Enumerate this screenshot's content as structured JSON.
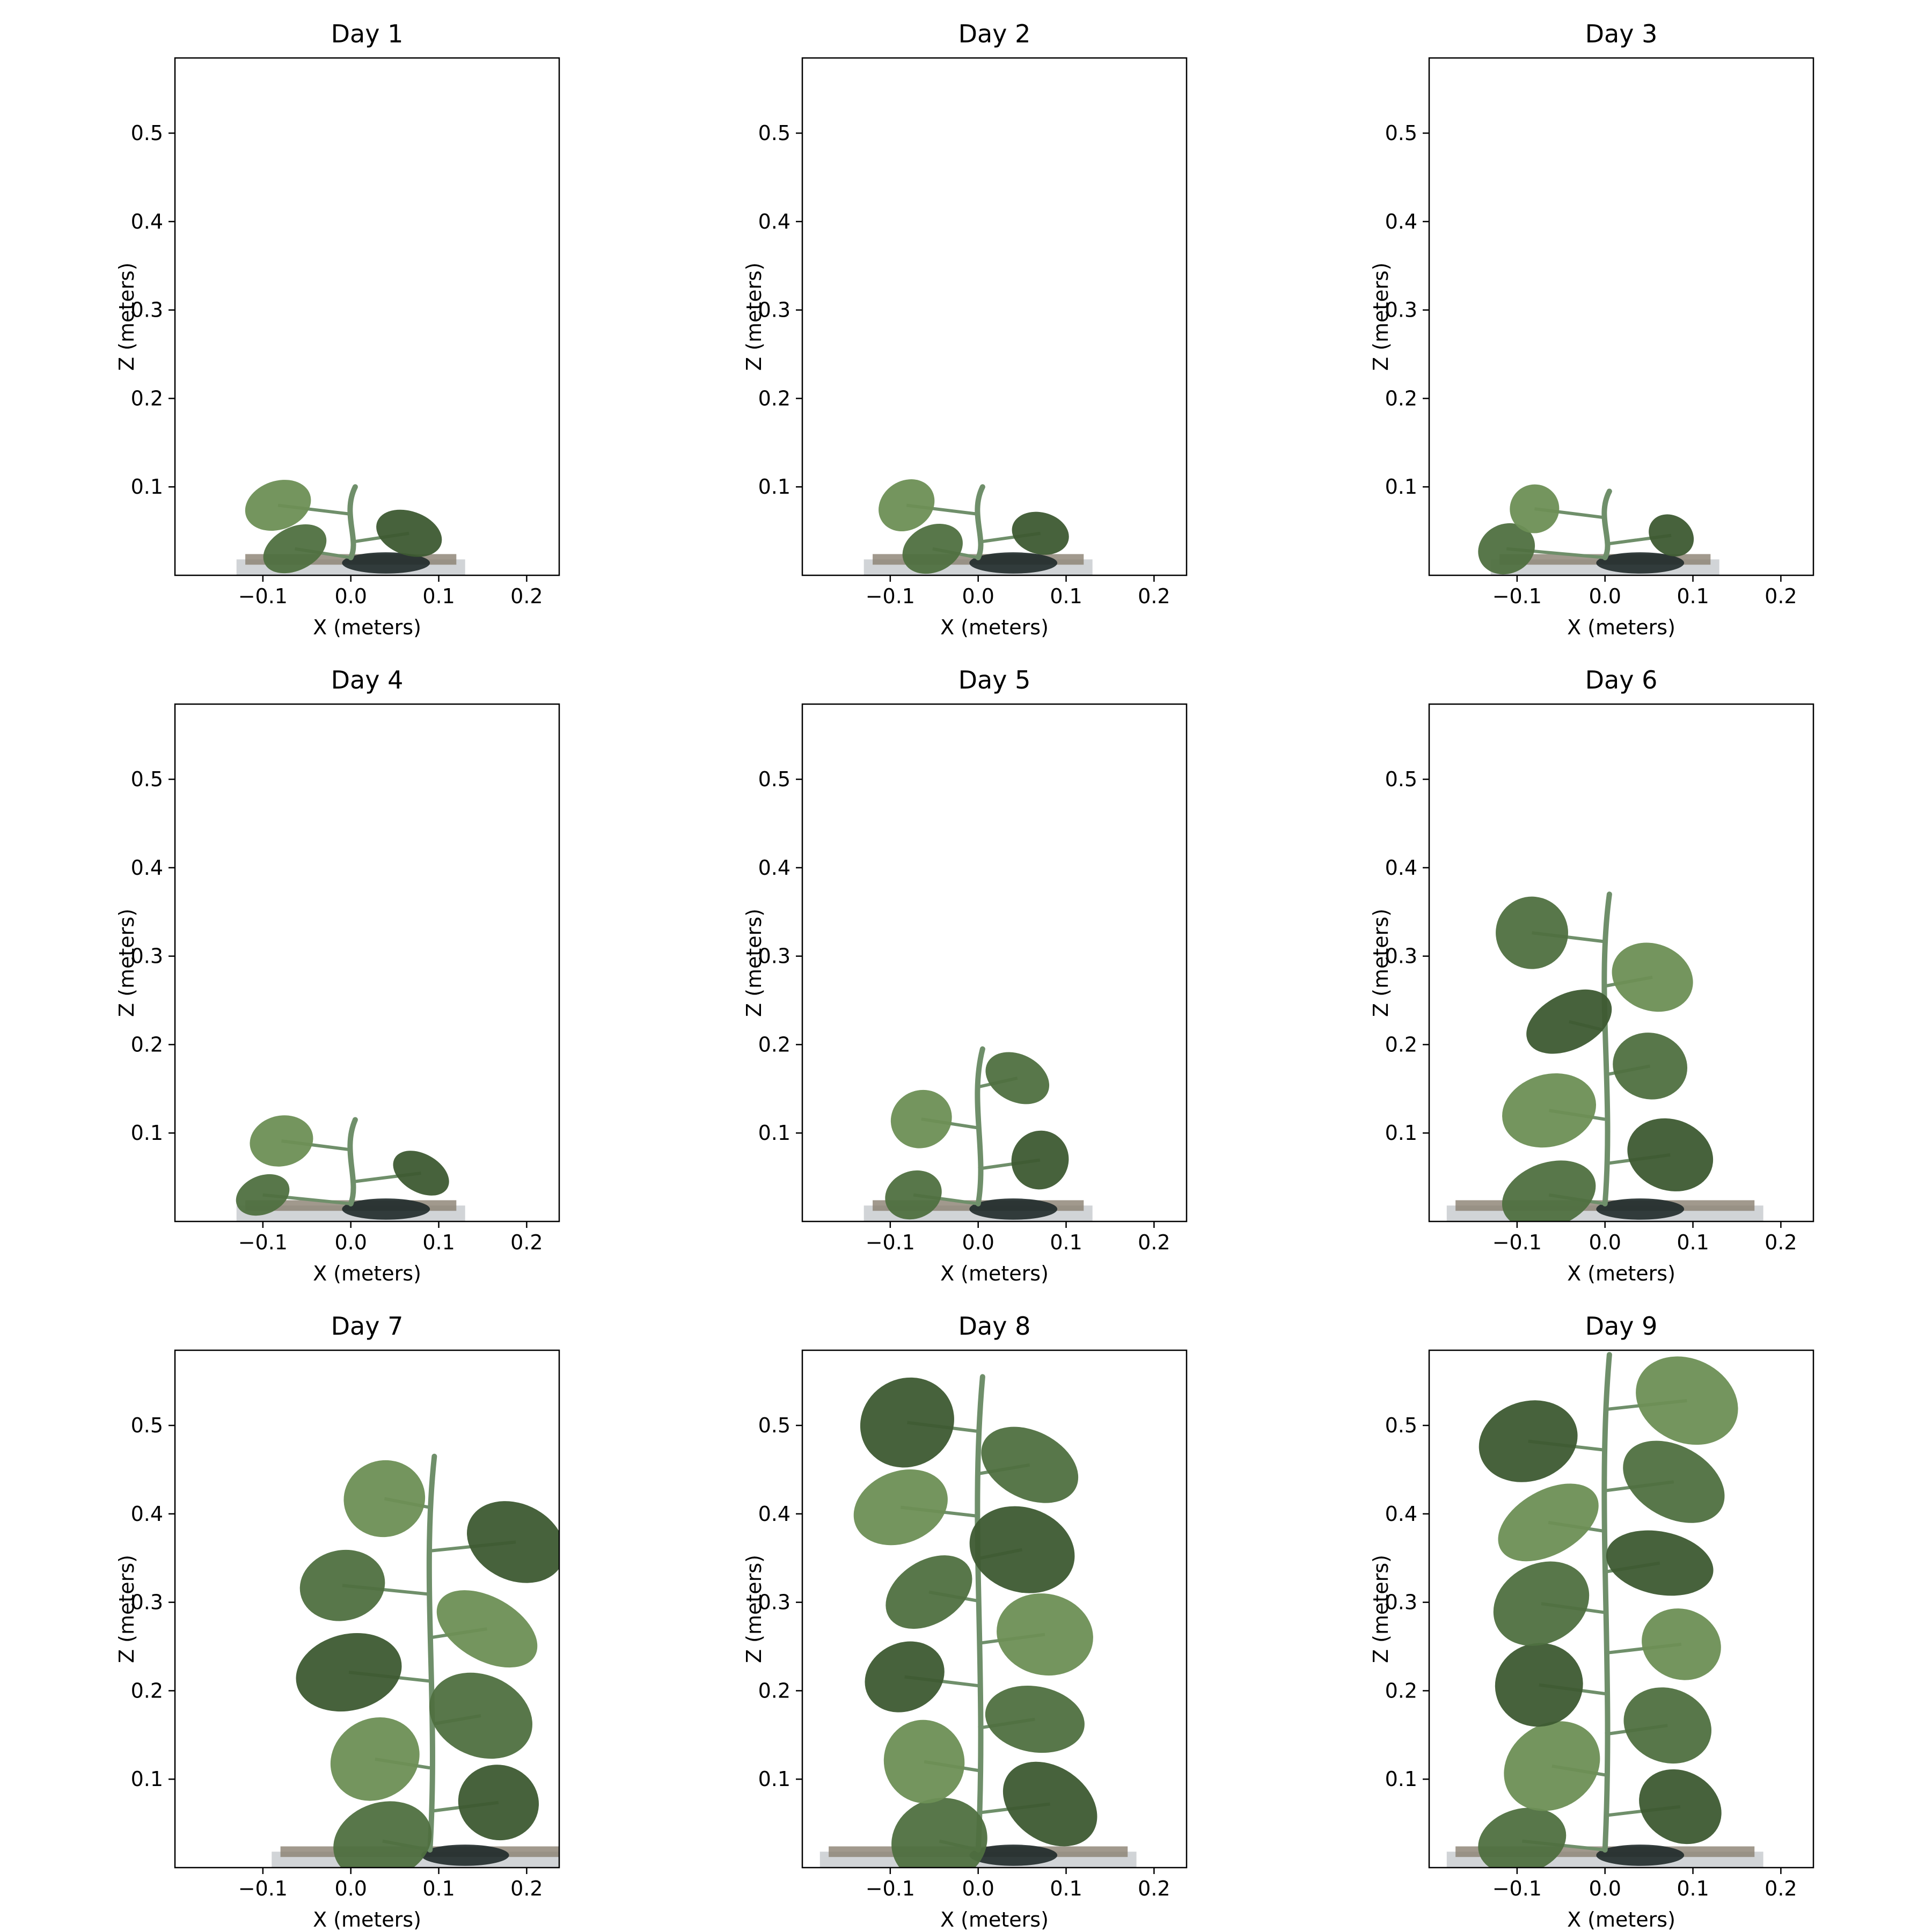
{
  "figure": {
    "panels": [
      {
        "title": "Day 1",
        "plant_height": 0.1
      },
      {
        "title": "Day 2",
        "plant_height": 0.1
      },
      {
        "title": "Day 3",
        "plant_height": 0.095
      },
      {
        "title": "Day 4",
        "plant_height": 0.115
      },
      {
        "title": "Day 5",
        "plant_height": 0.195
      },
      {
        "title": "Day 6",
        "plant_height": 0.37
      },
      {
        "title": "Day 7",
        "plant_height": 0.465
      },
      {
        "title": "Day 8",
        "plant_height": 0.555
      },
      {
        "title": "Day 9",
        "plant_height": 0.58
      }
    ]
  },
  "colors": {
    "leaf": "#4f7040",
    "leaf_dark": "#3d5a32",
    "leaf_light": "#6d8f55",
    "stem": "#6f8f6a",
    "soil": "#8a8070",
    "soil_dark": "#1f2a2a",
    "tray": "#c9cdd0"
  },
  "chart_data": [
    {
      "type": "scatter",
      "title": "Day 1",
      "xlabel": "X (meters)",
      "ylabel": "Z (meters)",
      "xlim": [
        -0.2,
        0.237
      ],
      "ylim": [
        0,
        0.585
      ],
      "xticks": [
        -0.1,
        0.0,
        0.1,
        0.2
      ],
      "xtick_labels": [
        "−0.1",
        "0.0",
        "0.1",
        "0.2"
      ],
      "yticks": [
        0.1,
        0.2,
        0.3,
        0.4,
        0.5
      ],
      "ytick_labels": [
        "0.1",
        "0.2",
        "0.3",
        "0.4",
        "0.5"
      ],
      "grid": false
    },
    {
      "type": "scatter",
      "title": "Day 2",
      "xlabel": "X (meters)",
      "ylabel": "Z (meters)",
      "xlim": [
        -0.2,
        0.237
      ],
      "ylim": [
        0,
        0.585
      ],
      "xticks": [
        -0.1,
        0.0,
        0.1,
        0.2
      ],
      "xtick_labels": [
        "−0.1",
        "0.0",
        "0.1",
        "0.2"
      ],
      "yticks": [
        0.1,
        0.2,
        0.3,
        0.4,
        0.5
      ],
      "ytick_labels": [
        "0.1",
        "0.2",
        "0.3",
        "0.4",
        "0.5"
      ],
      "grid": false
    },
    {
      "type": "scatter",
      "title": "Day 3",
      "xlabel": "X (meters)",
      "ylabel": "Z (meters)",
      "xlim": [
        -0.2,
        0.237
      ],
      "ylim": [
        0,
        0.585
      ],
      "xticks": [
        -0.1,
        0.0,
        0.1,
        0.2
      ],
      "xtick_labels": [
        "−0.1",
        "0.0",
        "0.1",
        "0.2"
      ],
      "yticks": [
        0.1,
        0.2,
        0.3,
        0.4,
        0.5
      ],
      "ytick_labels": [
        "0.1",
        "0.2",
        "0.3",
        "0.4",
        "0.5"
      ],
      "grid": false
    },
    {
      "type": "scatter",
      "title": "Day 4",
      "xlabel": "X (meters)",
      "ylabel": "Z (meters)",
      "xlim": [
        -0.2,
        0.237
      ],
      "ylim": [
        0,
        0.585
      ],
      "xticks": [
        -0.1,
        0.0,
        0.1,
        0.2
      ],
      "xtick_labels": [
        "−0.1",
        "0.0",
        "0.1",
        "0.2"
      ],
      "yticks": [
        0.1,
        0.2,
        0.3,
        0.4,
        0.5
      ],
      "ytick_labels": [
        "0.1",
        "0.2",
        "0.3",
        "0.4",
        "0.5"
      ],
      "grid": false
    },
    {
      "type": "scatter",
      "title": "Day 5",
      "xlabel": "X (meters)",
      "ylabel": "Z (meters)",
      "xlim": [
        -0.2,
        0.237
      ],
      "ylim": [
        0,
        0.585
      ],
      "xticks": [
        -0.1,
        0.0,
        0.1,
        0.2
      ],
      "xtick_labels": [
        "−0.1",
        "0.0",
        "0.1",
        "0.2"
      ],
      "yticks": [
        0.1,
        0.2,
        0.3,
        0.4,
        0.5
      ],
      "ytick_labels": [
        "0.1",
        "0.2",
        "0.3",
        "0.4",
        "0.5"
      ],
      "grid": false
    },
    {
      "type": "scatter",
      "title": "Day 6",
      "xlabel": "X (meters)",
      "ylabel": "Z (meters)",
      "xlim": [
        -0.2,
        0.237
      ],
      "ylim": [
        0,
        0.585
      ],
      "xticks": [
        -0.1,
        0.0,
        0.1,
        0.2
      ],
      "xtick_labels": [
        "−0.1",
        "0.0",
        "0.1",
        "0.2"
      ],
      "yticks": [
        0.1,
        0.2,
        0.3,
        0.4,
        0.5
      ],
      "ytick_labels": [
        "0.1",
        "0.2",
        "0.3",
        "0.4",
        "0.5"
      ],
      "grid": false
    },
    {
      "type": "scatter",
      "title": "Day 7",
      "xlabel": "X (meters)",
      "ylabel": "Z (meters)",
      "xlim": [
        -0.2,
        0.237
      ],
      "ylim": [
        0,
        0.585
      ],
      "xticks": [
        -0.1,
        0.0,
        0.1,
        0.2
      ],
      "xtick_labels": [
        "−0.1",
        "0.0",
        "0.1",
        "0.2"
      ],
      "yticks": [
        0.1,
        0.2,
        0.3,
        0.4,
        0.5
      ],
      "ytick_labels": [
        "0.1",
        "0.2",
        "0.3",
        "0.4",
        "0.5"
      ],
      "grid": false
    },
    {
      "type": "scatter",
      "title": "Day 8",
      "xlabel": "X (meters)",
      "ylabel": "Z (meters)",
      "xlim": [
        -0.2,
        0.237
      ],
      "ylim": [
        0,
        0.585
      ],
      "xticks": [
        -0.1,
        0.0,
        0.1,
        0.2
      ],
      "xtick_labels": [
        "−0.1",
        "0.0",
        "0.1",
        "0.2"
      ],
      "yticks": [
        0.1,
        0.2,
        0.3,
        0.4,
        0.5
      ],
      "ytick_labels": [
        "0.1",
        "0.2",
        "0.3",
        "0.4",
        "0.5"
      ],
      "grid": false
    },
    {
      "type": "scatter",
      "title": "Day 9",
      "xlabel": "X (meters)",
      "ylabel": "Z (meters)",
      "xlim": [
        -0.2,
        0.237
      ],
      "ylim": [
        0,
        0.585
      ],
      "xticks": [
        -0.1,
        0.0,
        0.1,
        0.2
      ],
      "xtick_labels": [
        "−0.1",
        "0.0",
        "0.1",
        "0.2"
      ],
      "yticks": [
        0.1,
        0.2,
        0.3,
        0.4,
        0.5
      ],
      "ytick_labels": [
        "0.1",
        "0.2",
        "0.3",
        "0.4",
        "0.5"
      ],
      "grid": false
    }
  ]
}
